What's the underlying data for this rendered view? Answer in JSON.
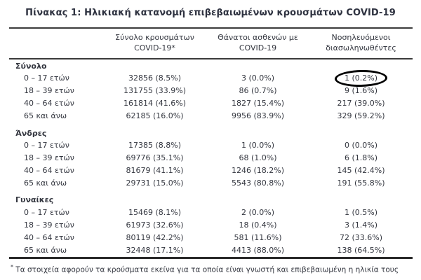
{
  "page": {
    "title": "Πίνακας 1: Ηλικιακή κατανομή επιβεβαιωμένων κρουσμάτων COVID-19",
    "footnote_marker": "*",
    "footnote": "Τα στοιχεία αφορούν τα κρούσματα εκείνα για τα οποία είναι γνωστή και επιβεβαιωμένη η ηλικία τους"
  },
  "table": {
    "header": {
      "cases_line1": "Σύνολο κρουσμάτων",
      "cases_line2": "COVID-19*",
      "deaths_line1": "Θάνατοι ασθενών με",
      "deaths_line2": "COVID-19",
      "intubated_line1": "Νοσηλευόμενοι",
      "intubated_line2": "διασωληνωθέντες"
    },
    "sections": [
      {
        "label": "Σύνολο",
        "rows": [
          {
            "age": "0 – 17 ετών",
            "cases": "32856 (8.5%)",
            "deaths": "3 (0.0%)",
            "intubated": "1 (0.2%)"
          },
          {
            "age": "18 – 39 ετών",
            "cases": "131755 (33.9%)",
            "deaths": "86 (0.7%)",
            "intubated": "9 (1.6%)"
          },
          {
            "age": "40 – 64 ετών",
            "cases": "161814 (41.6%)",
            "deaths": "1827 (15.4%)",
            "intubated": "217 (39.0%)"
          },
          {
            "age": "65 και άνω",
            "cases": "62185 (16.0%)",
            "deaths": "9956 (83.9%)",
            "intubated": "329 (59.2%)"
          }
        ]
      },
      {
        "label": "Άνδρες",
        "rows": [
          {
            "age": "0 – 17 ετών",
            "cases": "17385 (8.8%)",
            "deaths": "1 (0.0%)",
            "intubated": "0 (0.0%)"
          },
          {
            "age": "18 – 39 ετών",
            "cases": "69776 (35.1%)",
            "deaths": "68 (1.0%)",
            "intubated": "6 (1.8%)"
          },
          {
            "age": "40 – 64 ετών",
            "cases": "81679 (41.1%)",
            "deaths": "1246 (18.2%)",
            "intubated": "145 (42.4%)"
          },
          {
            "age": "65 και άνω",
            "cases": "29731 (15.0%)",
            "deaths": "5543 (80.8%)",
            "intubated": "191 (55.8%)"
          }
        ]
      },
      {
        "label": "Γυναίκες",
        "rows": [
          {
            "age": "0 – 17 ετών",
            "cases": "15469 (8.1%)",
            "deaths": "2 (0.0%)",
            "intubated": "1 (0.5%)"
          },
          {
            "age": "18 – 39 ετών",
            "cases": "61973 (32.6%)",
            "deaths": "18 (0.4%)",
            "intubated": "3 (1.4%)"
          },
          {
            "age": "40 – 64 ετών",
            "cases": "80119 (42.2%)",
            "deaths": "581 (11.6%)",
            "intubated": "72 (33.6%)"
          },
          {
            "age": "65 και άνω",
            "cases": "32448 (17.1%)",
            "deaths": "4413 (88.0%)",
            "intubated": "138 (64.5%)"
          }
        ]
      }
    ],
    "annotation": {
      "shape": "ellipse",
      "color": "#000000",
      "highlighted_value": "1 (0.2%)",
      "highlighted_row": "Σύνολο / 0 – 17 ετών",
      "highlighted_column": "Νοσηλευόμενοι διασωληνωθέντες"
    }
  },
  "colors": {
    "background": "#FFFFFF",
    "text": "#33363F",
    "title": "#2E3240",
    "rule": "#3B3B3B",
    "annotation": "#000000"
  }
}
